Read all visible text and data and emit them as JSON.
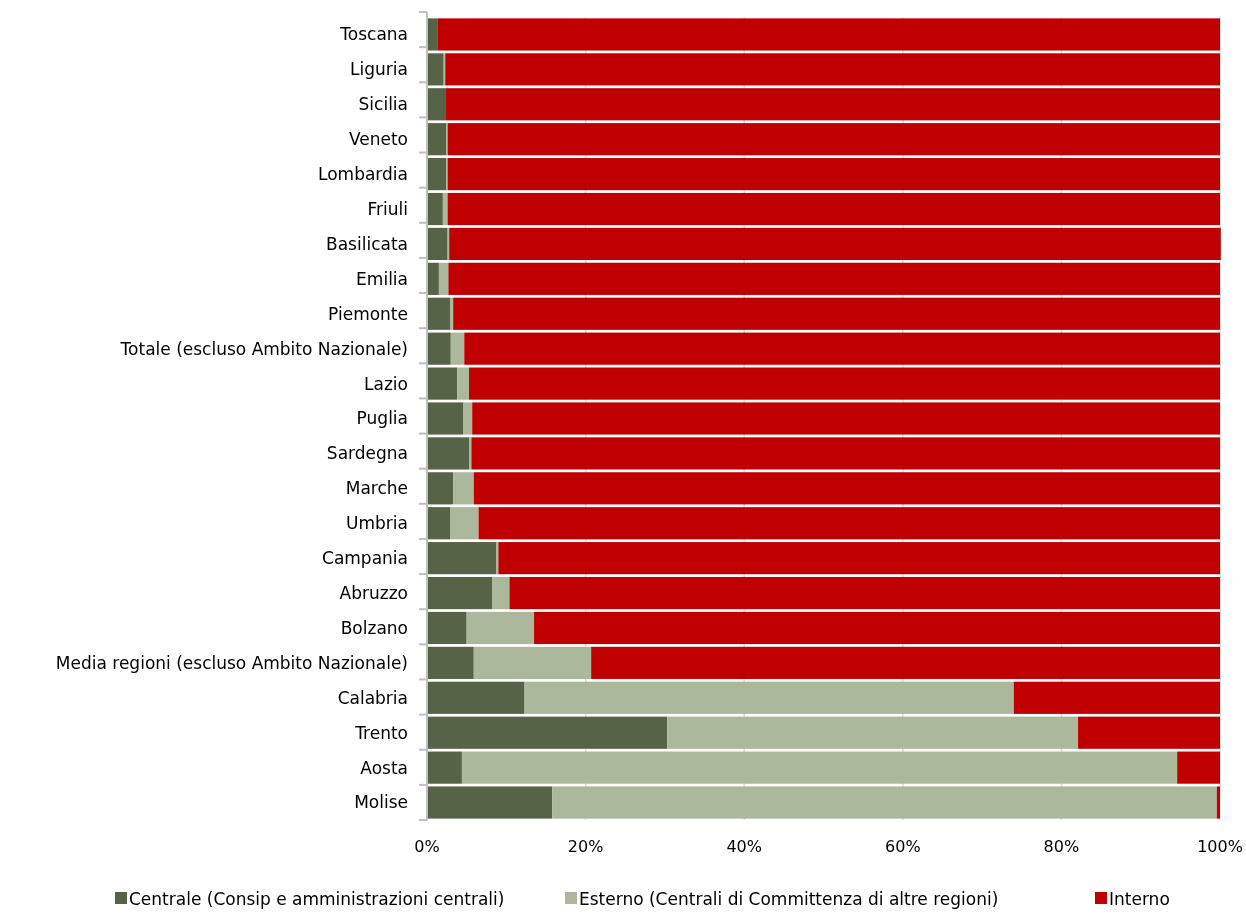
{
  "chart_data": {
    "type": "bar",
    "orientation": "horizontal",
    "stacked": true,
    "categories": [
      "Toscana",
      "Liguria",
      "Sicilia",
      "Veneto",
      "Lombardia",
      "Friuli",
      "Basilicata",
      "Emilia",
      "Piemonte",
      "Totale (escluso Ambito Nazionale)",
      "Lazio",
      "Puglia",
      "Sardegna",
      "Marche",
      "Umbria",
      "Campania",
      "Abruzzo",
      "Bolzano",
      "Media regioni (escluso Ambito Nazionale)",
      "Calabria",
      "Trento",
      "Aosta",
      "Molise"
    ],
    "series": [
      {
        "name": "Centrale (Consip e amministrazioni centrali)",
        "color": "#576346",
        "values": [
          1.3,
          2.1,
          2.4,
          2.4,
          2.4,
          2.0,
          2.6,
          1.5,
          2.9,
          3.0,
          3.8,
          4.6,
          5.3,
          3.3,
          2.9,
          8.7,
          8.2,
          5.0,
          5.9,
          12.3,
          30.3,
          4.4,
          15.8
        ]
      },
      {
        "name": "Esterno (Centrali di Committenza di altre regioni)",
        "color": "#acb89c",
        "values": [
          0,
          0.2,
          0,
          0.2,
          0.2,
          0.6,
          0.2,
          1.2,
          0.4,
          1.7,
          1.5,
          1.1,
          0.3,
          2.6,
          3.6,
          0.3,
          2.2,
          8.5,
          14.8,
          61.7,
          51.8,
          90.2,
          83.8
        ]
      },
      {
        "name": "Interno",
        "color": "#c00000",
        "values": [
          98.7,
          97.7,
          97.6,
          97.4,
          97.4,
          97.4,
          97.3,
          97.3,
          96.7,
          95.3,
          94.7,
          94.3,
          94.4,
          94.1,
          93.5,
          91.0,
          89.6,
          86.5,
          79.3,
          26.0,
          17.9,
          5.4,
          0.4
        ]
      }
    ],
    "xlim": [
      0,
      100
    ],
    "xticks": [
      {
        "value": 0,
        "label": "0%"
      },
      {
        "value": 20,
        "label": "20%"
      },
      {
        "value": 40,
        "label": "40%"
      },
      {
        "value": 60,
        "label": "60%"
      },
      {
        "value": 80,
        "label": "80%"
      },
      {
        "value": 100,
        "label": "100%"
      }
    ],
    "grid": "x",
    "legend": "bottom"
  }
}
